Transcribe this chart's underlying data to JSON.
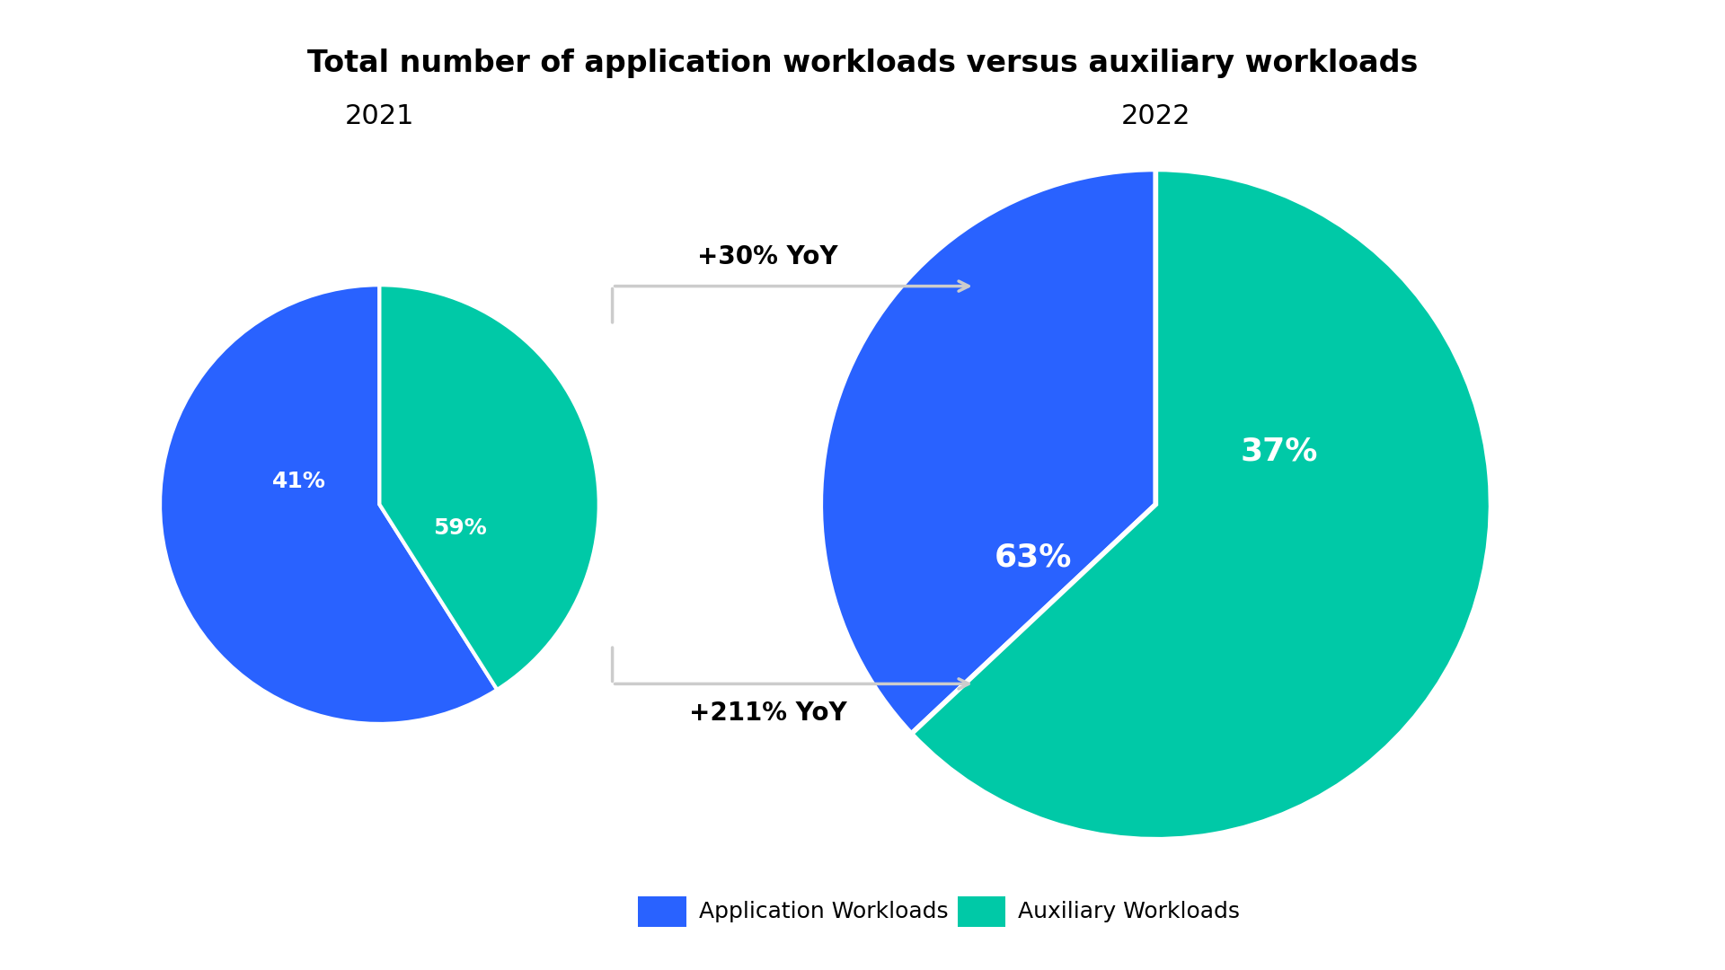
{
  "title": "Total number of application workloads versus auxiliary workloads",
  "title_fontsize": 24,
  "title_fontweight": "bold",
  "year_2021": "2021",
  "year_2022": "2022",
  "year_fontsize": 22,
  "pie1_values": [
    59,
    41
  ],
  "pie2_values": [
    37,
    63
  ],
  "pie1_labels": [
    "59%",
    "41%"
  ],
  "pie2_labels": [
    "37%",
    "63%"
  ],
  "blue_color": "#2962FF",
  "green_color": "#00C9A7",
  "arrow_color": "#CCCCCC",
  "annotation_top": "+30% YoY",
  "annotation_bottom": "+211% YoY",
  "annotation_fontsize": 20,
  "annotation_fontweight": "bold",
  "legend_app": "Application Workloads",
  "legend_aux": "Auxiliary Workloads",
  "legend_fontsize": 18,
  "background_color": "#FFFFFF",
  "label_fontsize_small": 18,
  "label_fontsize_large": 26
}
